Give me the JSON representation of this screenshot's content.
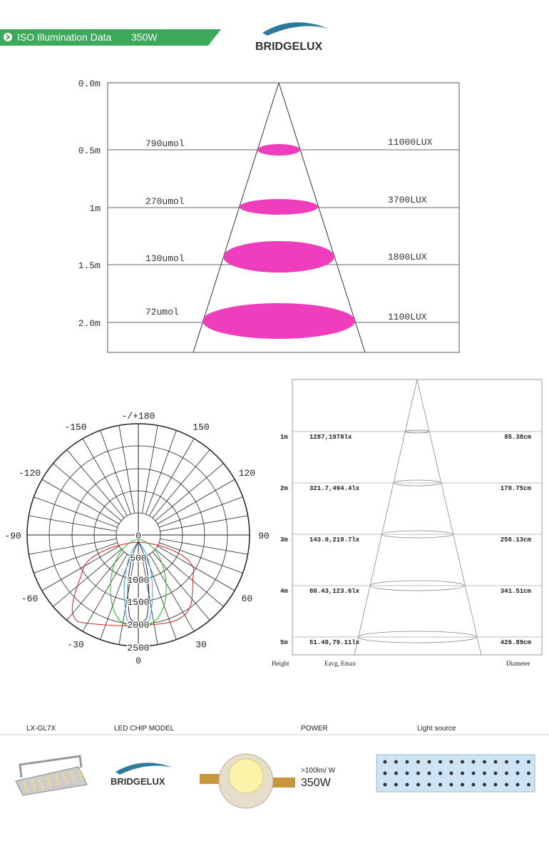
{
  "header": {
    "title": "ISO Illumination Data",
    "power": "350W",
    "brand": "BRIDGELUX"
  },
  "cone_chart": {
    "heights": [
      "0.0m",
      "0.5m",
      "1m",
      "1.5m",
      "2.0m"
    ],
    "ppfd": [
      "790umol",
      "270umol",
      "130umol",
      "72umol"
    ],
    "lux": [
      "11000LUX",
      "3700LUX",
      "1800LUX",
      "1100LUX"
    ]
  },
  "polar_chart": {
    "angle_labels": [
      "-/+180",
      "-150",
      "150",
      "-120",
      "120",
      "-90",
      "90",
      "-60",
      "60",
      "-30",
      "30",
      "0"
    ],
    "radial_labels": [
      "0",
      "500",
      "1000",
      "1500",
      "2000",
      "2500"
    ]
  },
  "beam_chart": {
    "heights": [
      "1m",
      "2m",
      "3m",
      "4m",
      "5m"
    ],
    "illuminance": [
      "1287,1978lx",
      "321.7,494.4lx",
      "143.0,219.7lx",
      "80.43,123.6lx",
      "51.48,79.11lx"
    ],
    "diameters": [
      "85.38cm",
      "170.75cm",
      "256.13cm",
      "341.51cm",
      "426.89cm"
    ],
    "footer": [
      "Height",
      "Eavg, Emax",
      "Diameter"
    ]
  },
  "specs": {
    "labels": [
      "LX-GL7X",
      "LED CHIP MODEL",
      "POWER",
      "Light source"
    ],
    "brand": "BRIDGELUX",
    "efficacy": ">100lm/ W",
    "power": "350W"
  }
}
